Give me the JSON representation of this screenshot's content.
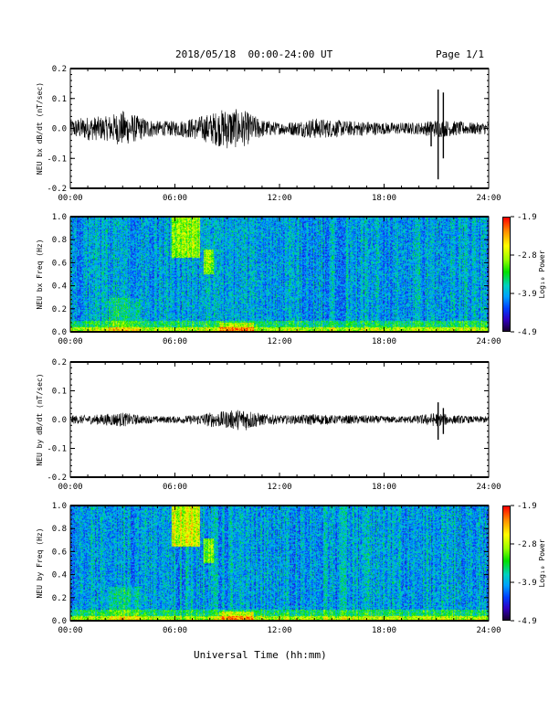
{
  "header": {
    "date_range": "2018/05/18  00:00-24:00 UT",
    "page": "Page 1/1"
  },
  "x_axis": {
    "ticks": [
      "00:00",
      "06:00",
      "12:00",
      "18:00",
      "24:00"
    ],
    "label": "Universal Time (hh:mm)"
  },
  "chart_data": [
    {
      "type": "line",
      "ylabel": "NEU bx dB/dt (nT/sec)",
      "ylim": [
        -0.2,
        0.2
      ],
      "yticks": [
        "0.2",
        "0.1",
        "0.0",
        "-0.1",
        "-0.2"
      ],
      "xlim": [
        "00:00",
        "24:00"
      ],
      "envelope_hours": [
        0,
        1,
        2,
        3,
        4,
        5,
        6,
        7,
        8,
        9,
        10,
        11,
        12,
        13,
        14,
        15,
        16,
        17,
        18,
        19,
        20,
        21,
        22,
        23,
        24
      ],
      "envelope_amplitude": [
        0.03,
        0.04,
        0.04,
        0.06,
        0.04,
        0.025,
        0.025,
        0.035,
        0.05,
        0.07,
        0.06,
        0.03,
        0.02,
        0.025,
        0.035,
        0.03,
        0.025,
        0.025,
        0.02,
        0.02,
        0.02,
        0.03,
        0.025,
        0.02,
        0.02
      ],
      "spikes": [
        {
          "hour": 21.1,
          "min": -0.17,
          "max": 0.13
        },
        {
          "hour": 21.4,
          "min": -0.1,
          "max": 0.12
        },
        {
          "hour": 20.7,
          "min": -0.06,
          "max": 0.02
        }
      ]
    },
    {
      "type": "heatmap",
      "ylabel": "NEU bx Freq (Hz)",
      "ylim": [
        0,
        1.0
      ],
      "yticks": [
        "1.0",
        "0.8",
        "0.6",
        "0.4",
        "0.2",
        "0.0"
      ],
      "xlim": [
        "00:00",
        "24:00"
      ],
      "colorbar": {
        "label": "Log₁₀ Power",
        "ticks": [
          "-1.9",
          "-2.8",
          "-3.9",
          "-4.9"
        ],
        "range": [
          -4.9,
          -1.9
        ]
      }
    },
    {
      "type": "line",
      "ylabel": "NEU by dB/dt (nT/sec)",
      "ylim": [
        -0.2,
        0.2
      ],
      "yticks": [
        "0.2",
        "0.1",
        "0.0",
        "-0.1",
        "-0.2"
      ],
      "xlim": [
        "00:00",
        "24:00"
      ],
      "envelope_hours": [
        0,
        1,
        2,
        3,
        4,
        5,
        6,
        7,
        8,
        9,
        10,
        11,
        12,
        13,
        14,
        15,
        16,
        17,
        18,
        19,
        20,
        21,
        22,
        23,
        24
      ],
      "envelope_amplitude": [
        0.015,
        0.015,
        0.02,
        0.025,
        0.015,
        0.012,
        0.012,
        0.015,
        0.025,
        0.03,
        0.04,
        0.02,
        0.015,
        0.015,
        0.02,
        0.015,
        0.015,
        0.015,
        0.012,
        0.012,
        0.015,
        0.025,
        0.015,
        0.012,
        0.012
      ],
      "spikes": [
        {
          "hour": 21.1,
          "min": -0.07,
          "max": 0.06
        },
        {
          "hour": 21.4,
          "min": -0.05,
          "max": 0.04
        }
      ]
    },
    {
      "type": "heatmap",
      "ylabel": "NEU by Freq (Hz)",
      "ylim": [
        0,
        1.0
      ],
      "yticks": [
        "1.0",
        "0.8",
        "0.6",
        "0.4",
        "0.2",
        "0.0"
      ],
      "xlim": [
        "00:00",
        "24:00"
      ],
      "colorbar": {
        "label": "Log₁₀ Power",
        "ticks": [
          "-1.9",
          "-2.8",
          "-3.9",
          "-4.9"
        ],
        "range": [
          -4.9,
          -1.9
        ]
      }
    }
  ]
}
